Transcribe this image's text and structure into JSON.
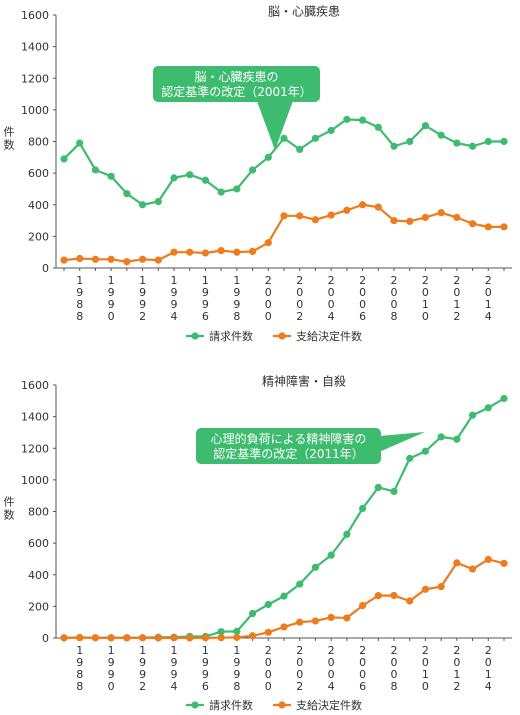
{
  "colors": {
    "request": "#3dbb6e",
    "payment": "#ee7b1c",
    "callout_bg": "#3dbb6e",
    "axis": "#555555"
  },
  "chart_data": [
    {
      "type": "line",
      "title": "脳・心臓疾患",
      "ylabel": "件数",
      "ylim": [
        0,
        1600
      ],
      "yticks": [
        0,
        200,
        400,
        600,
        800,
        1000,
        1200,
        1400,
        1600
      ],
      "x": [
        1987,
        1988,
        1989,
        1990,
        1991,
        1992,
        1993,
        1994,
        1995,
        1996,
        1997,
        1998,
        1999,
        2000,
        2001,
        2002,
        2003,
        2004,
        2005,
        2006,
        2007,
        2008,
        2009,
        2010,
        2011,
        2012,
        2013,
        2014,
        2015
      ],
      "xtick_labels": [
        "1988",
        "1990",
        "1992",
        "1994",
        "1996",
        "1998",
        "2000",
        "2002",
        "2004",
        "2006",
        "2008",
        "2010",
        "2012",
        "2014"
      ],
      "series": [
        {
          "name": "請求件数",
          "values": [
            690,
            790,
            620,
            580,
            470,
            400,
            420,
            570,
            590,
            555,
            480,
            500,
            620,
            700,
            820,
            750,
            820,
            870,
            940,
            935,
            890,
            770,
            800,
            900,
            840,
            790,
            770,
            800,
            800
          ]
        },
        {
          "name": "支給決定件数",
          "values": [
            50,
            60,
            55,
            55,
            40,
            55,
            50,
            100,
            100,
            95,
            110,
            100,
            105,
            160,
            330,
            330,
            305,
            335,
            365,
            400,
            385,
            300,
            295,
            320,
            350,
            320,
            280,
            260,
            260
          ]
        }
      ],
      "annotation": {
        "lines": [
          "脳・心臓疾患の",
          "認定基準の改定（2001年）"
        ],
        "year": 2001
      },
      "legend": [
        "請求件数",
        "支給決定件数"
      ],
      "legend_position": "bottom"
    },
    {
      "type": "line",
      "title": "精神障害・自殺",
      "ylabel": "件数",
      "ylim": [
        0,
        1600
      ],
      "yticks": [
        0,
        200,
        400,
        600,
        800,
        1000,
        1200,
        1400,
        1600
      ],
      "x": [
        1987,
        1988,
        1989,
        1990,
        1991,
        1992,
        1993,
        1994,
        1995,
        1996,
        1997,
        1998,
        1999,
        2000,
        2001,
        2002,
        2003,
        2004,
        2005,
        2006,
        2007,
        2008,
        2009,
        2010,
        2011,
        2012,
        2013,
        2014,
        2015
      ],
      "xtick_labels": [
        "1988",
        "1990",
        "1992",
        "1994",
        "1996",
        "1998",
        "2000",
        "2002",
        "2004",
        "2006",
        "2008",
        "2010",
        "2012",
        "2014"
      ],
      "series": [
        {
          "name": "請求件数",
          "values": [
            1,
            3,
            2,
            2,
            2,
            2,
            5,
            5,
            10,
            10,
            40,
            42,
            155,
            212,
            265,
            341,
            447,
            524,
            656,
            819,
            952,
            927,
            1136,
            1181,
            1272,
            1257,
            1409,
            1456,
            1515
          ]
        },
        {
          "name": "支給決定件数",
          "values": [
            1,
            2,
            1,
            1,
            1,
            1,
            0,
            1,
            0,
            1,
            2,
            4,
            14,
            36,
            70,
            100,
            108,
            130,
            127,
            205,
            268,
            269,
            234,
            308,
            325,
            475,
            436,
            497,
            472
          ]
        }
      ],
      "annotation": {
        "lines": [
          "心理的負荷による精神障害の",
          "認定基準の改定（2011年）"
        ],
        "year": 2011
      },
      "legend": [
        "請求件数",
        "支給決定件数"
      ],
      "legend_position": "bottom"
    }
  ]
}
